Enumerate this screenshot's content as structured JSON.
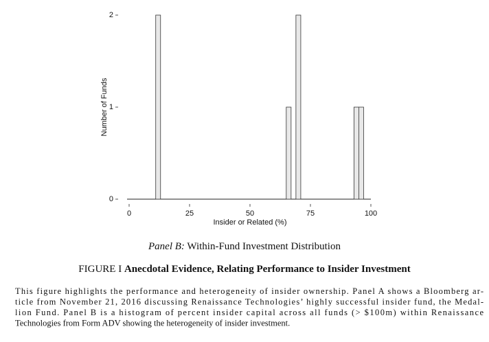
{
  "chart_data": {
    "type": "histogram",
    "xlabel": "Insider or Related (%)",
    "ylabel": "Number of Funds",
    "bins": [
      11,
      13,
      15,
      17,
      19,
      21,
      23,
      25,
      27,
      29,
      31,
      33,
      35,
      37,
      39,
      41,
      43,
      45,
      47,
      49,
      51,
      53,
      55,
      57,
      59,
      61,
      63,
      65,
      67,
      69,
      71,
      73,
      75,
      77,
      79,
      81,
      83,
      85,
      87,
      89,
      91,
      93,
      95,
      97
    ],
    "counts": [
      2,
      0,
      0,
      0,
      0,
      0,
      0,
      0,
      0,
      0,
      0,
      0,
      0,
      0,
      0,
      0,
      0,
      0,
      0,
      0,
      0,
      0,
      0,
      0,
      0,
      0,
      0,
      1,
      0,
      2,
      0,
      0,
      0,
      0,
      0,
      0,
      0,
      0,
      0,
      0,
      0,
      1,
      1
    ],
    "color": "#e8e8e8",
    "xlim": [
      0,
      100
    ],
    "xticks": [
      0,
      25,
      50,
      75,
      100
    ],
    "ylim": [
      0,
      2
    ],
    "yticks": [
      0,
      1,
      2
    ]
  },
  "caption": {
    "panel_label": "Panel B:",
    "panel_title": "Within-Fund Investment Distribution",
    "figure_label": "FIGURE I",
    "figure_title": "Anecdotal Evidence, Relating Performance to Insider Investment",
    "lines": [
      "This figure highlights the performance and heterogeneity of insider ownership. Panel A shows a Bloomberg ar-",
      "ticle from November 21, 2016 discussing Renaissance Technologies’ highly successful insider fund, the Medal-",
      "lion Fund.  Panel B is a histogram of percent insider capital across all funds (> $100m) within Renaissance",
      "Technologies from Form ADV showing the heterogeneity of insider investment."
    ]
  }
}
